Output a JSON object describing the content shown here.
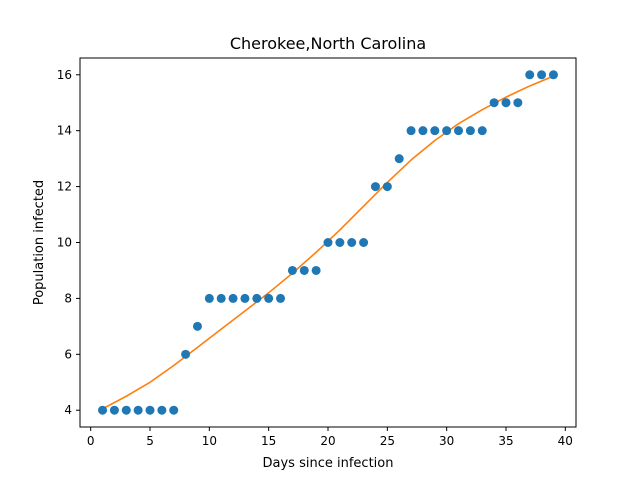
{
  "chart_data": {
    "type": "scatter",
    "title": "Cherokee,North Carolina",
    "xlabel": "Days since infection",
    "ylabel": "Population infected",
    "xlim": [
      -0.9,
      40.9
    ],
    "ylim": [
      3.4,
      16.6
    ],
    "xticks": [
      0,
      5,
      10,
      15,
      20,
      25,
      30,
      35,
      40
    ],
    "yticks": [
      4,
      6,
      8,
      10,
      12,
      14,
      16
    ],
    "grid": false,
    "series": [
      {
        "kind": "scatter",
        "color": "#1f77b4",
        "x": [
          1,
          2,
          3,
          4,
          5,
          6,
          7,
          8,
          9,
          10,
          11,
          12,
          13,
          14,
          15,
          16,
          17,
          18,
          19,
          20,
          21,
          22,
          23,
          24,
          25,
          26,
          27,
          28,
          29,
          30,
          31,
          32,
          33,
          34,
          35,
          36,
          37,
          38,
          39
        ],
        "y": [
          4,
          4,
          4,
          4,
          4,
          4,
          4,
          6,
          7,
          8,
          8,
          8,
          8,
          8,
          8,
          8,
          9,
          9,
          9,
          10,
          10,
          10,
          10,
          12,
          12,
          13,
          14,
          14,
          14,
          14,
          14,
          14,
          14,
          15,
          15,
          15,
          16,
          16,
          16
        ]
      },
      {
        "kind": "line",
        "color": "#ff7f0e",
        "x": [
          1,
          3,
          5,
          7,
          9,
          11,
          13,
          15,
          17,
          19,
          21,
          23,
          25,
          27,
          29,
          31,
          33,
          35,
          37,
          39
        ],
        "y": [
          4.05,
          4.5,
          5.0,
          5.6,
          6.25,
          6.9,
          7.55,
          8.2,
          8.9,
          9.65,
          10.45,
          11.3,
          12.15,
          12.95,
          13.65,
          14.25,
          14.75,
          15.2,
          15.6,
          15.95
        ]
      }
    ]
  }
}
